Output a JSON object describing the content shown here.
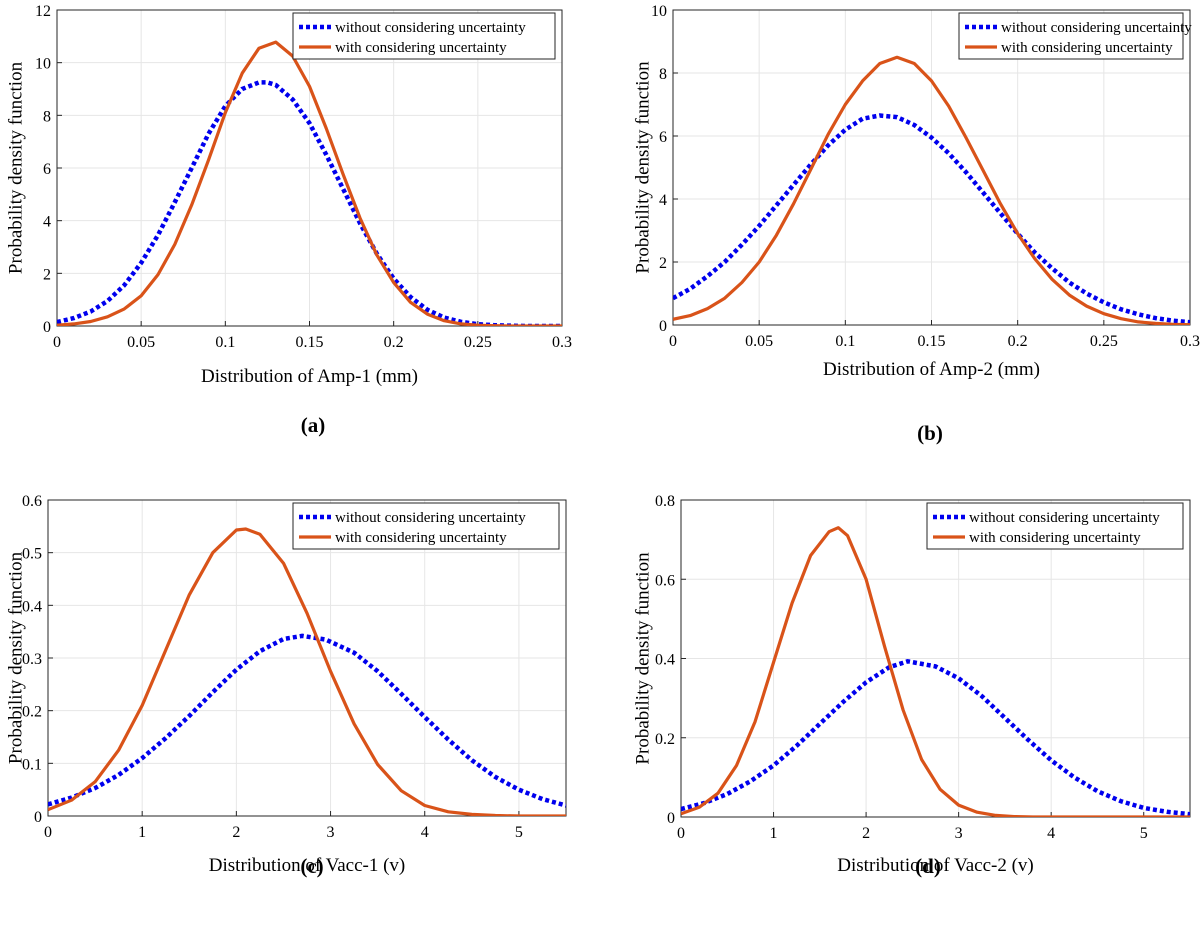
{
  "series_styles": {
    "without": {
      "color": "#0000ee",
      "dash": "dotted"
    },
    "with": {
      "color": "#d95319",
      "dash": "solid"
    }
  },
  "chart_data": [
    {
      "type": "line",
      "panel": "(a)",
      "xlabel": "Distribution of Amp-1  (mm)",
      "ylabel": "Probability density function",
      "xlim": [
        0,
        0.3
      ],
      "ylim": [
        0,
        12
      ],
      "xticks": [
        0,
        0.05,
        0.1,
        0.15,
        0.2,
        0.25,
        0.3
      ],
      "xtick_labels": [
        "0",
        "0.05",
        "0.1",
        "0.15",
        "0.2",
        "0.25",
        "0.3"
      ],
      "yticks": [
        0,
        2,
        4,
        6,
        8,
        10,
        12
      ],
      "ytick_labels": [
        "0",
        "2",
        "4",
        "6",
        "8",
        "10",
        "12"
      ],
      "grid": true,
      "legend": "top-right",
      "series": [
        {
          "name": "without considering uncertainty",
          "key": "without",
          "x": [
            0,
            0.01,
            0.02,
            0.03,
            0.04,
            0.05,
            0.06,
            0.07,
            0.08,
            0.09,
            0.1,
            0.11,
            0.12,
            0.125,
            0.13,
            0.14,
            0.15,
            0.16,
            0.17,
            0.18,
            0.19,
            0.2,
            0.21,
            0.22,
            0.23,
            0.24,
            0.25,
            0.26,
            0.27,
            0.28,
            0.29,
            0.3
          ],
          "y": [
            0.15,
            0.3,
            0.55,
            0.95,
            1.55,
            2.4,
            3.45,
            4.7,
            6.0,
            7.3,
            8.35,
            9.0,
            9.25,
            9.25,
            9.15,
            8.6,
            7.7,
            6.5,
            5.2,
            3.9,
            2.75,
            1.8,
            1.1,
            0.62,
            0.32,
            0.16,
            0.07,
            0.03,
            0.01,
            0.0,
            0.0,
            0.0
          ]
        },
        {
          "name": "with considering uncertainty",
          "key": "with",
          "x": [
            0,
            0.01,
            0.02,
            0.03,
            0.04,
            0.05,
            0.06,
            0.07,
            0.08,
            0.09,
            0.1,
            0.11,
            0.12,
            0.13,
            0.14,
            0.15,
            0.16,
            0.17,
            0.18,
            0.19,
            0.2,
            0.21,
            0.22,
            0.23,
            0.24,
            0.25,
            0.26,
            0.27,
            0.28,
            0.29,
            0.3
          ],
          "y": [
            0.03,
            0.08,
            0.17,
            0.35,
            0.65,
            1.15,
            1.95,
            3.1,
            4.6,
            6.3,
            8.1,
            9.6,
            10.55,
            10.78,
            10.25,
            9.1,
            7.5,
            5.75,
            4.1,
            2.7,
            1.65,
            0.9,
            0.45,
            0.2,
            0.08,
            0.03,
            0.01,
            0.0,
            0.0,
            0.0,
            0.0
          ]
        }
      ]
    },
    {
      "type": "line",
      "panel": "(b)",
      "xlabel": "Distribution of Amp-2  (mm)",
      "ylabel": "Probability density function",
      "xlim": [
        0,
        0.3
      ],
      "ylim": [
        0,
        10
      ],
      "xticks": [
        0,
        0.05,
        0.1,
        0.15,
        0.2,
        0.25,
        0.3
      ],
      "xtick_labels": [
        "0",
        "0.05",
        "0.1",
        "0.15",
        "0.2",
        "0.25",
        "0.3"
      ],
      "yticks": [
        0,
        2,
        4,
        6,
        8,
        10
      ],
      "ytick_labels": [
        "0",
        "2",
        "4",
        "6",
        "8",
        "10"
      ],
      "grid": true,
      "legend": "top-right",
      "series": [
        {
          "name": "without considering uncertainty",
          "key": "without",
          "x": [
            0,
            0.01,
            0.02,
            0.03,
            0.04,
            0.05,
            0.06,
            0.07,
            0.08,
            0.09,
            0.1,
            0.11,
            0.12,
            0.13,
            0.14,
            0.15,
            0.16,
            0.17,
            0.18,
            0.19,
            0.2,
            0.21,
            0.22,
            0.23,
            0.24,
            0.25,
            0.26,
            0.27,
            0.28,
            0.29,
            0.3
          ],
          "y": [
            0.85,
            1.15,
            1.55,
            2.0,
            2.55,
            3.15,
            3.8,
            4.45,
            5.1,
            5.7,
            6.2,
            6.55,
            6.65,
            6.6,
            6.35,
            5.95,
            5.45,
            4.85,
            4.2,
            3.55,
            2.9,
            2.3,
            1.8,
            1.35,
            1.0,
            0.72,
            0.5,
            0.34,
            0.22,
            0.14,
            0.09
          ]
        },
        {
          "name": "with considering uncertainty",
          "key": "with",
          "x": [
            0,
            0.01,
            0.02,
            0.03,
            0.04,
            0.05,
            0.06,
            0.07,
            0.08,
            0.09,
            0.1,
            0.11,
            0.12,
            0.13,
            0.14,
            0.15,
            0.16,
            0.17,
            0.18,
            0.19,
            0.2,
            0.21,
            0.22,
            0.23,
            0.24,
            0.25,
            0.26,
            0.27,
            0.28,
            0.29,
            0.3
          ],
          "y": [
            0.18,
            0.3,
            0.52,
            0.85,
            1.35,
            2.0,
            2.85,
            3.85,
            4.95,
            6.05,
            7.0,
            7.75,
            8.3,
            8.5,
            8.3,
            7.75,
            6.95,
            5.95,
            4.9,
            3.85,
            2.9,
            2.1,
            1.45,
            0.95,
            0.6,
            0.36,
            0.2,
            0.1,
            0.05,
            0.02,
            0.01
          ]
        }
      ]
    },
    {
      "type": "line",
      "panel": "(c)",
      "xlabel": "Distribution of Vacc-1  (v)",
      "ylabel": "Probability density function",
      "xlim": [
        0,
        5.5
      ],
      "ylim": [
        0,
        0.6
      ],
      "xticks": [
        0,
        1,
        2,
        3,
        4,
        5
      ],
      "xtick_labels": [
        "0",
        "1",
        "2",
        "3",
        "4",
        "5"
      ],
      "yticks": [
        0,
        0.1,
        0.2,
        0.3,
        0.4,
        0.5,
        0.6
      ],
      "ytick_labels": [
        "0",
        "0.1",
        "0.2",
        "0.3",
        "0.4",
        "0.5",
        "0.6"
      ],
      "grid": true,
      "legend": "top-right",
      "series": [
        {
          "name": "without considering uncertainty",
          "key": "without",
          "x": [
            0,
            0.25,
            0.5,
            0.75,
            1.0,
            1.25,
            1.5,
            1.75,
            2.0,
            2.25,
            2.5,
            2.7,
            2.95,
            3.25,
            3.5,
            3.75,
            4.0,
            4.25,
            4.5,
            4.75,
            5.0,
            5.25,
            5.5
          ],
          "y": [
            0.022,
            0.035,
            0.053,
            0.078,
            0.11,
            0.148,
            0.19,
            0.235,
            0.278,
            0.313,
            0.336,
            0.342,
            0.335,
            0.31,
            0.275,
            0.232,
            0.188,
            0.145,
            0.106,
            0.074,
            0.05,
            0.032,
            0.02
          ]
        },
        {
          "name": "with considering uncertainty",
          "key": "with",
          "x": [
            0,
            0.25,
            0.5,
            0.75,
            1.0,
            1.25,
            1.5,
            1.75,
            2.0,
            2.1,
            2.25,
            2.5,
            2.75,
            3.0,
            3.25,
            3.5,
            3.75,
            4.0,
            4.25,
            4.5,
            4.75,
            5.0,
            5.25,
            5.5
          ],
          "y": [
            0.012,
            0.03,
            0.065,
            0.125,
            0.21,
            0.315,
            0.42,
            0.5,
            0.543,
            0.545,
            0.535,
            0.48,
            0.385,
            0.275,
            0.175,
            0.098,
            0.048,
            0.02,
            0.008,
            0.003,
            0.001,
            0.0,
            0.0,
            0.0
          ]
        }
      ]
    },
    {
      "type": "line",
      "panel": "(d)",
      "xlabel": "Distribution of Vacc-2  (v)",
      "ylabel": "Probability density function",
      "xlim": [
        0,
        5.5
      ],
      "ylim": [
        0,
        0.8
      ],
      "xticks": [
        0,
        1,
        2,
        3,
        4,
        5
      ],
      "xtick_labels": [
        "0",
        "1",
        "2",
        "3",
        "4",
        "5"
      ],
      "yticks": [
        0,
        0.2,
        0.4,
        0.6,
        0.8
      ],
      "ytick_labels": [
        "0",
        "0.2",
        "0.4",
        "0.6",
        "0.8"
      ],
      "grid": true,
      "legend": "top-right",
      "series": [
        {
          "name": "without considering uncertainty",
          "key": "without",
          "x": [
            0,
            0.25,
            0.5,
            0.75,
            1.0,
            1.25,
            1.5,
            1.75,
            2.0,
            2.25,
            2.45,
            2.75,
            3.0,
            3.25,
            3.5,
            3.75,
            4.0,
            4.25,
            4.5,
            4.75,
            5.0,
            5.25,
            5.5
          ],
          "y": [
            0.02,
            0.035,
            0.058,
            0.09,
            0.13,
            0.18,
            0.235,
            0.29,
            0.34,
            0.378,
            0.393,
            0.38,
            0.35,
            0.305,
            0.25,
            0.195,
            0.143,
            0.1,
            0.065,
            0.04,
            0.023,
            0.013,
            0.007
          ]
        },
        {
          "name": "with considering uncertainty",
          "key": "with",
          "x": [
            0,
            0.2,
            0.4,
            0.6,
            0.8,
            1.0,
            1.2,
            1.4,
            1.6,
            1.7,
            1.8,
            2.0,
            2.2,
            2.4,
            2.6,
            2.8,
            3.0,
            3.2,
            3.4,
            3.6,
            3.8,
            4.0,
            4.5,
            5.0,
            5.5
          ],
          "y": [
            0.008,
            0.025,
            0.06,
            0.13,
            0.24,
            0.39,
            0.54,
            0.66,
            0.72,
            0.73,
            0.71,
            0.6,
            0.43,
            0.27,
            0.145,
            0.07,
            0.03,
            0.012,
            0.004,
            0.001,
            0.0,
            0.0,
            0.0,
            0.0,
            0.0
          ]
        }
      ]
    }
  ]
}
